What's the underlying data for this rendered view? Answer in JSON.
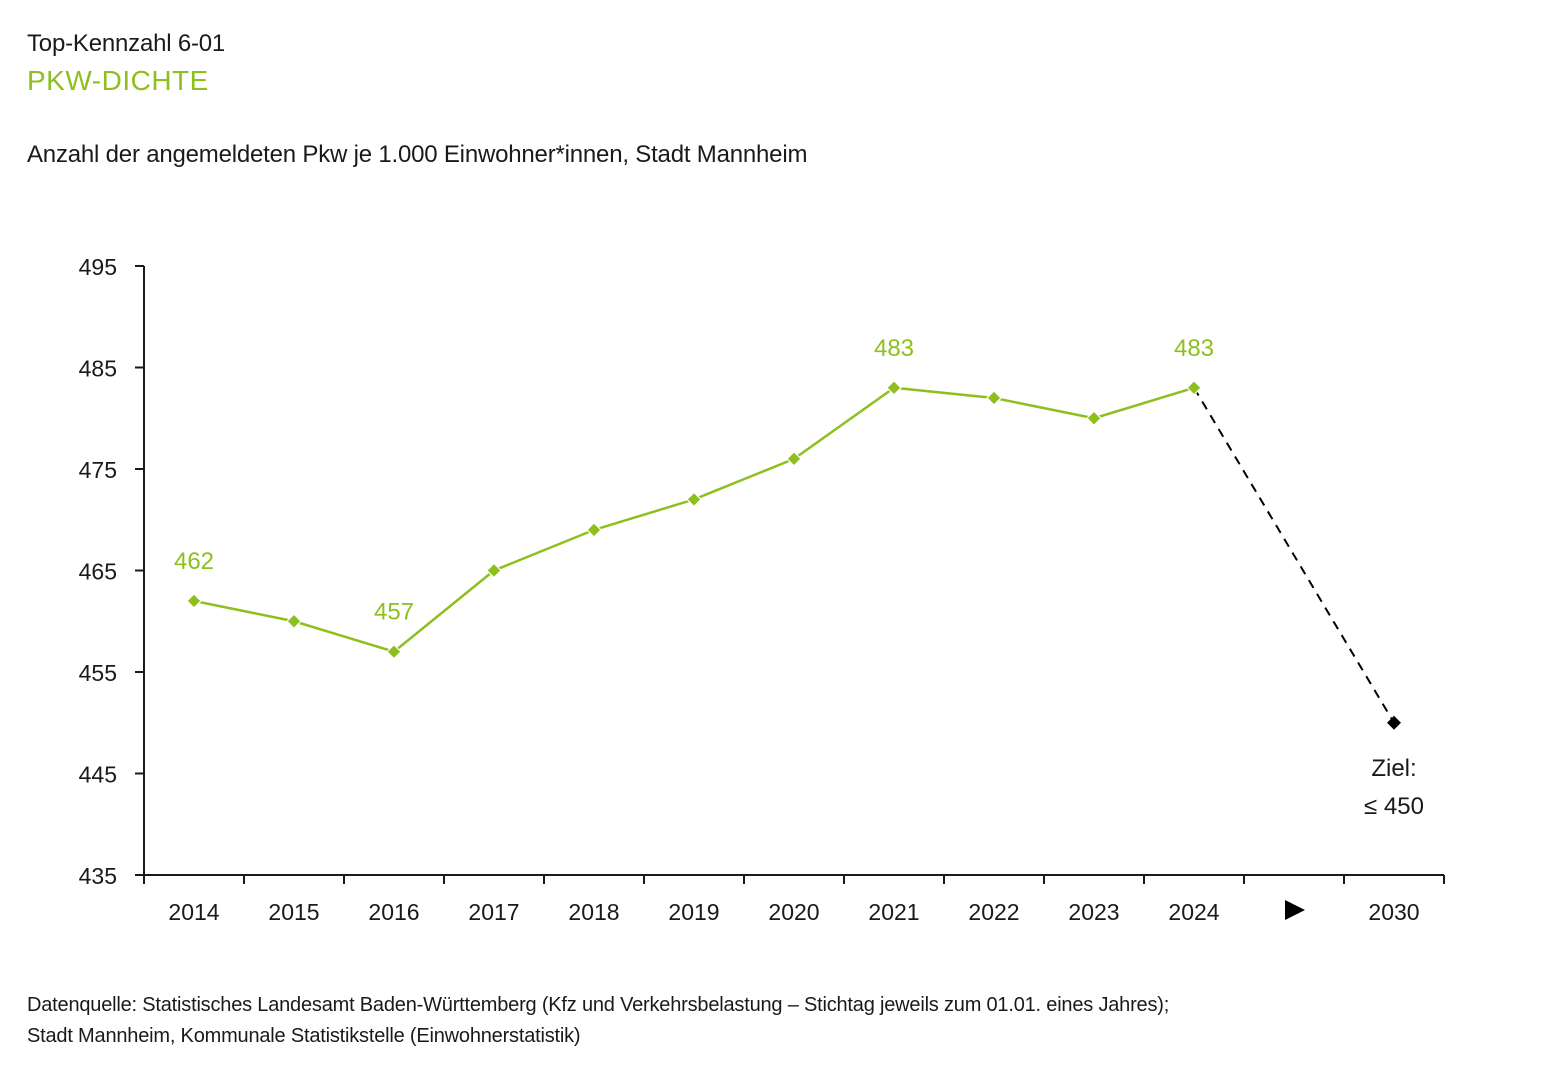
{
  "header": {
    "kennzahl": "Top-Kennzahl 6-01",
    "headline": "PKW-DICHTE",
    "subtitle": "Anzahl der angemeldeten Pkw je 1.000 Einwohner*innen, Stadt Mannheim"
  },
  "footer": {
    "source_line1": "Datenquelle: Statistisches Landesamt Baden-Württemberg (Kfz und Verkehrsbelastung – Stichtag jeweils zum 01.01. eines Jahres);",
    "source_line2": "Stadt Mannheim, Kommunale Statistikstelle (Einwohnerstatistik)"
  },
  "colors": {
    "series": "#8dbf1e",
    "target": "#000000",
    "axis": "#1a1a1a"
  },
  "chart_data": {
    "type": "line",
    "title": "PKW-DICHTE",
    "subtitle": "Anzahl der angemeldeten Pkw je 1.000 Einwohner*innen, Stadt Mannheim",
    "xlabel": "",
    "ylabel": "",
    "ylim": [
      435,
      495
    ],
    "yticks": [
      "435",
      "445",
      "455",
      "465",
      "475",
      "485",
      "495"
    ],
    "grid": false,
    "categories": [
      "2014",
      "2015",
      "2016",
      "2017",
      "2018",
      "2019",
      "2020",
      "2021",
      "2022",
      "2023",
      "2024",
      "▶",
      "2030"
    ],
    "series": [
      {
        "name": "Pkw je 1.000 Einwohner*innen",
        "x": [
          "2014",
          "2015",
          "2016",
          "2017",
          "2018",
          "2019",
          "2020",
          "2021",
          "2022",
          "2023",
          "2024"
        ],
        "values": [
          462,
          460,
          457,
          465,
          469,
          472,
          476,
          483,
          482,
          480,
          483
        ],
        "labeled": {
          "2014": "462",
          "2016": "457",
          "2021": "483",
          "2024": "483"
        }
      },
      {
        "name": "Ziel",
        "x": [
          "2024",
          "2030"
        ],
        "values": [
          483,
          450
        ],
        "style": "dashed"
      }
    ],
    "target": {
      "x": "2030",
      "value": 450,
      "label_line1": "Ziel:",
      "label_line2": "≤ 450"
    }
  }
}
